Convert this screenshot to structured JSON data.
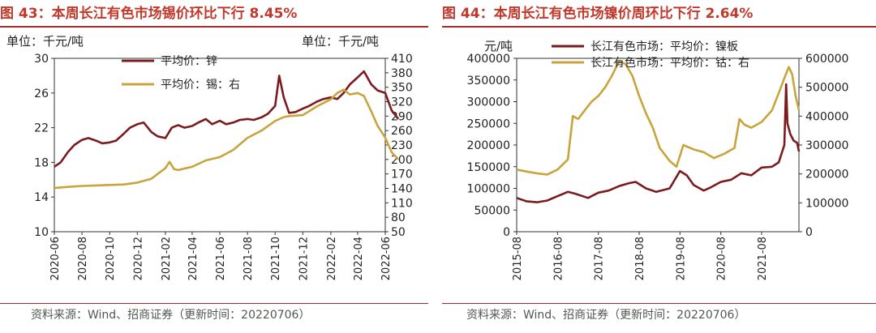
{
  "charts": [
    {
      "figure_title": "图 43：本周长江有色市场锡价环比下行 8.45%",
      "unit_left": "单位：千元/吨",
      "unit_right": "单位：千元/吨",
      "source": "资料来源：Wind、招商证券（更新时间：20220706）",
      "colors": {
        "zinc": "#7b1a1f",
        "tin": "#c9a43c",
        "title": "#c0392b"
      }
    },
    {
      "figure_title": "图 44：本周长江有色市场镍价周环比下行 2.64%",
      "unit_left": "元/吨",
      "source": "资料来源：Wind、招商证券（更新时间：20220706）",
      "colors": {
        "nickel": "#7b1a1f",
        "cobalt": "#c9a43c",
        "title": "#c0392b"
      }
    }
  ],
  "chart_data": [
    {
      "type": "line",
      "x_ticks": [
        "2020-06",
        "2020-08",
        "2020-10",
        "2020-12",
        "2021-02",
        "2021-04",
        "2021-06",
        "2021-08",
        "2021-10",
        "2021-12",
        "2022-02",
        "2022-04",
        "2022-06"
      ],
      "x_range": [
        "2020-06",
        "2022-06"
      ],
      "ylim_left": [
        10,
        30
      ],
      "yticks_left": [
        "10",
        "14",
        "18",
        "22",
        "26",
        "30"
      ],
      "ylim_right": [
        50,
        410
      ],
      "yticks_right": [
        "50",
        "80",
        "110",
        "140",
        "170",
        "200",
        "230",
        "260",
        "290",
        "320",
        "350",
        "380",
        "410"
      ],
      "legend_position": "top-left inside plot",
      "series": [
        {
          "name": "平均价：锌",
          "axis": "left",
          "points": [
            [
              "2020-06-01",
              17.5
            ],
            [
              "2020-06-15",
              18.0
            ],
            [
              "2020-07-01",
              19.2
            ],
            [
              "2020-07-15",
              20.0
            ],
            [
              "2020-08-01",
              20.6
            ],
            [
              "2020-08-15",
              20.8
            ],
            [
              "2020-09-01",
              20.5
            ],
            [
              "2020-09-15",
              20.2
            ],
            [
              "2020-10-01",
              20.3
            ],
            [
              "2020-10-15",
              20.5
            ],
            [
              "2020-11-01",
              21.3
            ],
            [
              "2020-11-15",
              22.0
            ],
            [
              "2020-12-01",
              22.4
            ],
            [
              "2020-12-15",
              22.6
            ],
            [
              "2021-01-01",
              21.5
            ],
            [
              "2021-01-15",
              21.0
            ],
            [
              "2021-02-01",
              20.8
            ],
            [
              "2021-02-15",
              22.0
            ],
            [
              "2021-03-01",
              22.3
            ],
            [
              "2021-03-15",
              22.0
            ],
            [
              "2021-04-01",
              22.2
            ],
            [
              "2021-04-15",
              22.6
            ],
            [
              "2021-05-01",
              23.0
            ],
            [
              "2021-05-15",
              22.4
            ],
            [
              "2021-06-01",
              22.8
            ],
            [
              "2021-06-15",
              22.4
            ],
            [
              "2021-07-01",
              22.6
            ],
            [
              "2021-07-15",
              22.9
            ],
            [
              "2021-08-01",
              23.0
            ],
            [
              "2021-08-15",
              22.9
            ],
            [
              "2021-09-01",
              23.2
            ],
            [
              "2021-09-15",
              23.6
            ],
            [
              "2021-10-01",
              24.5
            ],
            [
              "2021-10-10",
              28.0
            ],
            [
              "2021-10-20",
              25.5
            ],
            [
              "2021-11-01",
              23.7
            ],
            [
              "2021-11-15",
              23.8
            ],
            [
              "2021-12-01",
              24.2
            ],
            [
              "2021-12-15",
              24.5
            ],
            [
              "2022-01-01",
              25.0
            ],
            [
              "2022-01-15",
              25.3
            ],
            [
              "2022-02-01",
              25.5
            ],
            [
              "2022-02-15",
              25.3
            ],
            [
              "2022-03-01",
              26.0
            ],
            [
              "2022-03-15",
              27.0
            ],
            [
              "2022-04-01",
              27.8
            ],
            [
              "2022-04-15",
              28.5
            ],
            [
              "2022-05-01",
              27.0
            ],
            [
              "2022-05-15",
              26.3
            ],
            [
              "2022-06-01",
              26.0
            ],
            [
              "2022-06-15",
              24.0
            ],
            [
              "2022-06-30",
              23.0
            ]
          ]
        },
        {
          "name": "平均价：锡：右",
          "axis": "right",
          "points": [
            [
              "2020-06-01",
              141
            ],
            [
              "2020-07-01",
              143
            ],
            [
              "2020-08-01",
              145
            ],
            [
              "2020-09-01",
              146
            ],
            [
              "2020-10-01",
              147
            ],
            [
              "2020-11-01",
              148
            ],
            [
              "2020-12-01",
              152
            ],
            [
              "2021-01-01",
              160
            ],
            [
              "2021-01-15",
              170
            ],
            [
              "2021-02-01",
              182
            ],
            [
              "2021-02-10",
              195
            ],
            [
              "2021-02-20",
              180
            ],
            [
              "2021-03-01",
              178
            ],
            [
              "2021-04-01",
              185
            ],
            [
              "2021-05-01",
              198
            ],
            [
              "2021-06-01",
              205
            ],
            [
              "2021-07-01",
              220
            ],
            [
              "2021-08-01",
              245
            ],
            [
              "2021-09-01",
              260
            ],
            [
              "2021-10-01",
              280
            ],
            [
              "2021-10-20",
              288
            ],
            [
              "2021-11-01",
              290
            ],
            [
              "2021-12-01",
              292
            ],
            [
              "2022-01-01",
              310
            ],
            [
              "2022-02-01",
              325
            ],
            [
              "2022-02-15",
              338
            ],
            [
              "2022-03-01",
              345
            ],
            [
              "2022-03-15",
              335
            ],
            [
              "2022-04-01",
              338
            ],
            [
              "2022-04-15",
              332
            ],
            [
              "2022-05-01",
              300
            ],
            [
              "2022-05-15",
              270
            ],
            [
              "2022-06-01",
              245
            ],
            [
              "2022-06-15",
              215
            ],
            [
              "2022-06-30",
              200
            ]
          ]
        }
      ]
    },
    {
      "type": "line",
      "x_ticks": [
        "2015-08",
        "2016-08",
        "2017-08",
        "2018-08",
        "2019-08",
        "2020-08",
        "2021-08"
      ],
      "x_range": [
        "2015-08",
        "2022-07"
      ],
      "ylim_left": [
        0,
        400000
      ],
      "yticks_left": [
        "0",
        "50000",
        "100000",
        "150000",
        "200000",
        "250000",
        "300000",
        "350000",
        "400000"
      ],
      "ylim_right": [
        0,
        600000
      ],
      "yticks_right": [
        "0",
        "100000",
        "200000",
        "300000",
        "400000",
        "500000",
        "600000"
      ],
      "legend_position": "top-center inside plot",
      "series": [
        {
          "name": "长江有色市场：平均价：镍板",
          "axis": "left",
          "points": [
            [
              "2015-08-01",
              78000
            ],
            [
              "2015-11-01",
              70000
            ],
            [
              "2016-02-01",
              68000
            ],
            [
              "2016-05-01",
              72000
            ],
            [
              "2016-08-01",
              82000
            ],
            [
              "2016-11-01",
              92000
            ],
            [
              "2017-01-01",
              88000
            ],
            [
              "2017-05-01",
              78000
            ],
            [
              "2017-08-01",
              90000
            ],
            [
              "2017-11-01",
              95000
            ],
            [
              "2018-02-01",
              105000
            ],
            [
              "2018-05-01",
              112000
            ],
            [
              "2018-07-01",
              115000
            ],
            [
              "2018-10-01",
              100000
            ],
            [
              "2019-01-01",
              92000
            ],
            [
              "2019-05-01",
              100000
            ],
            [
              "2019-08-01",
              140000
            ],
            [
              "2019-10-01",
              130000
            ],
            [
              "2019-12-01",
              108000
            ],
            [
              "2020-03-01",
              95000
            ],
            [
              "2020-05-01",
              102000
            ],
            [
              "2020-08-01",
              115000
            ],
            [
              "2020-11-01",
              120000
            ],
            [
              "2021-02-01",
              135000
            ],
            [
              "2021-05-01",
              130000
            ],
            [
              "2021-08-01",
              148000
            ],
            [
              "2021-11-01",
              150000
            ],
            [
              "2022-01-01",
              160000
            ],
            [
              "2022-02-20",
              200000
            ],
            [
              "2022-03-08",
              340000
            ],
            [
              "2022-03-20",
              250000
            ],
            [
              "2022-04-15",
              225000
            ],
            [
              "2022-05-15",
              210000
            ],
            [
              "2022-06-15",
              205000
            ],
            [
              "2022-07-01",
              185000
            ]
          ]
        },
        {
          "name": "长江有色市场：平均价：钴：右",
          "axis": "right",
          "points": [
            [
              "2015-08-01",
              215000
            ],
            [
              "2015-11-01",
              208000
            ],
            [
              "2016-02-01",
              202000
            ],
            [
              "2016-05-01",
              198000
            ],
            [
              "2016-08-01",
              215000
            ],
            [
              "2016-11-01",
              250000
            ],
            [
              "2016-12-15",
              400000
            ],
            [
              "2017-02-01",
              390000
            ],
            [
              "2017-04-01",
              420000
            ],
            [
              "2017-06-01",
              450000
            ],
            [
              "2017-08-01",
              470000
            ],
            [
              "2017-10-01",
              500000
            ],
            [
              "2017-12-01",
              540000
            ],
            [
              "2018-02-01",
              590000
            ],
            [
              "2018-04-01",
              580000
            ],
            [
              "2018-06-01",
              540000
            ],
            [
              "2018-08-01",
              470000
            ],
            [
              "2018-10-01",
              410000
            ],
            [
              "2018-12-01",
              360000
            ],
            [
              "2019-02-01",
              290000
            ],
            [
              "2019-05-01",
              245000
            ],
            [
              "2019-07-01",
              225000
            ],
            [
              "2019-09-01",
              300000
            ],
            [
              "2019-12-01",
              285000
            ],
            [
              "2020-03-01",
              275000
            ],
            [
              "2020-06-01",
              255000
            ],
            [
              "2020-09-01",
              270000
            ],
            [
              "2020-12-01",
              290000
            ],
            [
              "2021-01-15",
              390000
            ],
            [
              "2021-03-01",
              370000
            ],
            [
              "2021-05-01",
              360000
            ],
            [
              "2021-08-01",
              380000
            ],
            [
              "2021-11-01",
              420000
            ],
            [
              "2022-01-01",
              480000
            ],
            [
              "2022-03-01",
              540000
            ],
            [
              "2022-04-01",
              570000
            ],
            [
              "2022-05-01",
              545000
            ],
            [
              "2022-06-01",
              470000
            ],
            [
              "2022-07-01",
              420000
            ]
          ]
        }
      ]
    }
  ]
}
